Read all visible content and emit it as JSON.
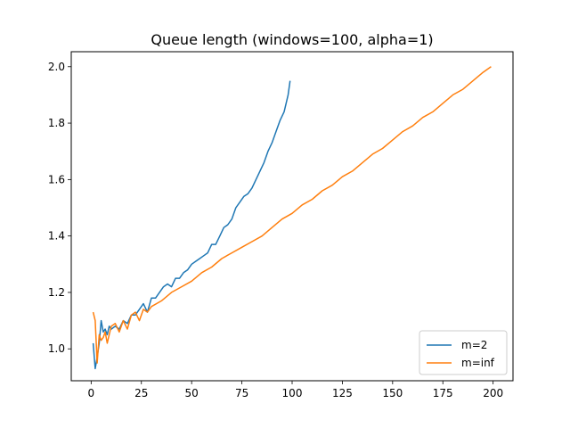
{
  "chart_data": {
    "type": "line",
    "title": "Queue length (windows=100, alpha=1)",
    "xlabel": "",
    "ylabel": "",
    "xlim": [
      -9.9,
      209.9
    ],
    "ylim": [
      0.887,
      2.053
    ],
    "xticks": [
      0,
      25,
      50,
      75,
      100,
      125,
      150,
      175,
      200
    ],
    "yticks": [
      1.0,
      1.2,
      1.4,
      1.6,
      1.8,
      2.0
    ],
    "xtick_labels": [
      "0",
      "25",
      "50",
      "75",
      "100",
      "125",
      "150",
      "175",
      "200"
    ],
    "ytick_labels": [
      "1.0",
      "1.2",
      "1.4",
      "1.6",
      "1.8",
      "2.0"
    ],
    "grid": false,
    "legend_position": "lower right",
    "series": [
      {
        "name": "m=2",
        "color": "#1f77b4",
        "x": [
          1,
          2,
          3,
          4,
          5,
          6,
          7,
          8,
          9,
          10,
          12,
          14,
          16,
          18,
          20,
          22,
          24,
          26,
          28,
          30,
          32,
          34,
          36,
          38,
          40,
          42,
          44,
          46,
          48,
          50,
          52,
          54,
          56,
          58,
          60,
          62,
          64,
          66,
          68,
          70,
          72,
          74,
          76,
          78,
          80,
          82,
          84,
          86,
          88,
          90,
          92,
          94,
          96,
          98,
          99
        ],
        "y": [
          1.02,
          0.93,
          0.97,
          1.02,
          1.1,
          1.06,
          1.07,
          1.05,
          1.08,
          1.07,
          1.08,
          1.07,
          1.1,
          1.09,
          1.12,
          1.12,
          1.14,
          1.16,
          1.13,
          1.18,
          1.18,
          1.2,
          1.22,
          1.23,
          1.22,
          1.25,
          1.25,
          1.27,
          1.28,
          1.3,
          1.31,
          1.32,
          1.33,
          1.34,
          1.37,
          1.37,
          1.4,
          1.43,
          1.44,
          1.46,
          1.5,
          1.52,
          1.54,
          1.55,
          1.57,
          1.6,
          1.63,
          1.66,
          1.7,
          1.73,
          1.77,
          1.81,
          1.84,
          1.9,
          1.95
        ]
      },
      {
        "name": "m=inf",
        "color": "#ff7f0e",
        "x": [
          1,
          2,
          3,
          4,
          5,
          6,
          7,
          8,
          9,
          10,
          12,
          14,
          16,
          18,
          20,
          22,
          24,
          26,
          28,
          30,
          35,
          40,
          45,
          50,
          55,
          60,
          65,
          70,
          75,
          80,
          85,
          90,
          95,
          100,
          105,
          110,
          115,
          120,
          125,
          130,
          135,
          140,
          145,
          150,
          155,
          160,
          165,
          170,
          175,
          180,
          185,
          190,
          195,
          199
        ],
        "y": [
          1.13,
          1.1,
          0.95,
          1.05,
          1.03,
          1.04,
          1.06,
          1.02,
          1.05,
          1.08,
          1.09,
          1.06,
          1.1,
          1.07,
          1.12,
          1.13,
          1.1,
          1.14,
          1.13,
          1.15,
          1.17,
          1.2,
          1.22,
          1.24,
          1.27,
          1.29,
          1.32,
          1.34,
          1.36,
          1.38,
          1.4,
          1.43,
          1.46,
          1.48,
          1.51,
          1.53,
          1.56,
          1.58,
          1.61,
          1.63,
          1.66,
          1.69,
          1.71,
          1.74,
          1.77,
          1.79,
          1.82,
          1.84,
          1.87,
          1.9,
          1.92,
          1.95,
          1.98,
          2.0
        ]
      }
    ]
  }
}
